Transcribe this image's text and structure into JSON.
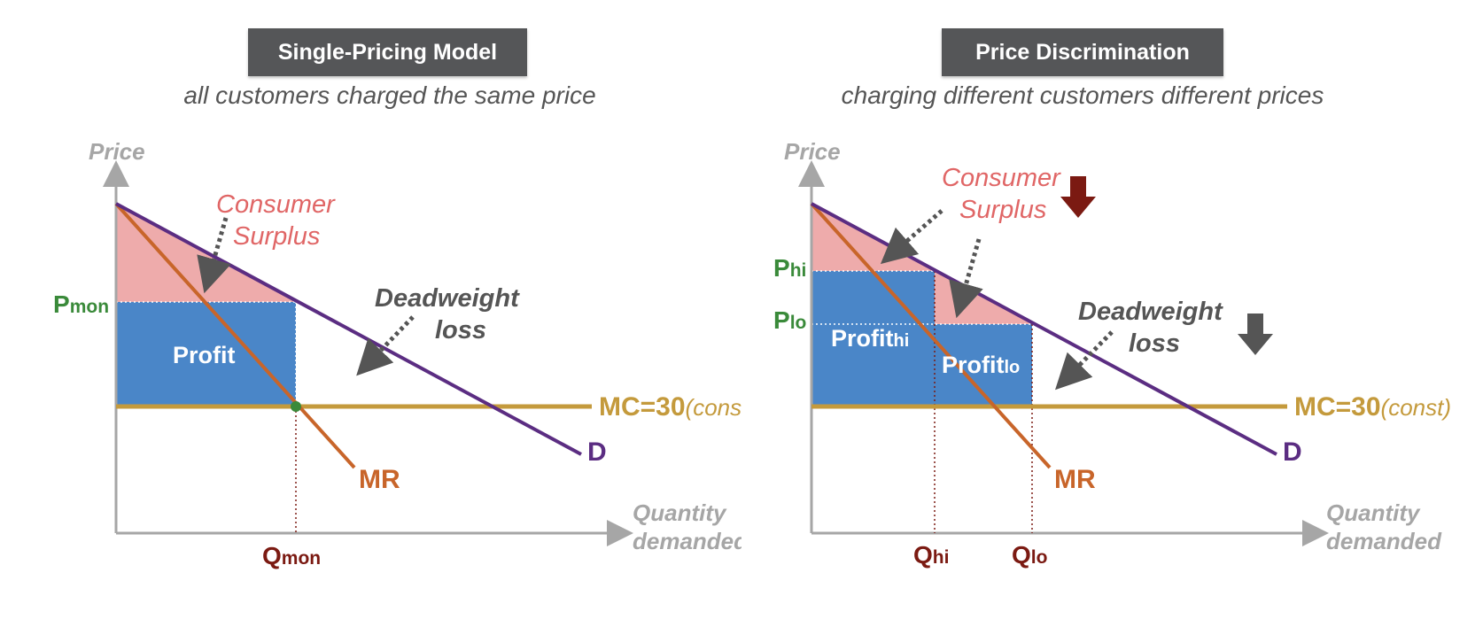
{
  "left": {
    "title": "Single-Pricing Model",
    "subtitle": "all customers charged the same price",
    "y_axis": "Price",
    "x_axis_line1": "Quantity",
    "x_axis_line2": "demanded",
    "cs_line1": "Consumer",
    "cs_line2": "Surplus",
    "dwl_line1": "Deadweight",
    "dwl_line2": "loss",
    "profit": "Profit",
    "mc": "MC=30",
    "mc_const": "(const)",
    "d": "D",
    "mr": "MR",
    "p_mon_main": "P",
    "p_mon_sub": "mon",
    "q_mon_main": "Q",
    "q_mon_sub": "mon"
  },
  "right": {
    "title": "Price Discrimination",
    "subtitle": "charging different customers different prices",
    "y_axis": "Price",
    "x_axis_line1": "Quantity",
    "x_axis_line2": "demanded",
    "cs_line1": "Consumer",
    "cs_line2": "Surplus",
    "dwl_line1": "Deadweight",
    "dwl_line2": "loss",
    "profit_hi_main": "Profit",
    "profit_hi_sub": "hi",
    "profit_lo_main": "Profit",
    "profit_lo_sub": "lo",
    "mc": "MC=30",
    "mc_const": "(const)",
    "d": "D",
    "mr": "MR",
    "p_hi_main": "P",
    "p_hi_sub": "hi",
    "p_lo_main": "P",
    "p_lo_sub": "lo",
    "q_hi_main": "Q",
    "q_hi_sub": "hi",
    "q_lo_main": "Q",
    "q_lo_sub": "lo"
  },
  "colors": {
    "demand": "#5b2d82",
    "mr": "#c8652a",
    "mc": "#c49a3c",
    "consumer_surplus": "#e06666",
    "profit": "#4a86c8",
    "axis": "#a6a6a6",
    "price_label": "#3a8a3a",
    "quantity_label": "#7b1a12",
    "cs_down_arrow": "#7b1a12",
    "dwl_down_arrow": "#555555"
  },
  "icons": [
    "cs-down-arrow-icon",
    "dwl-down-arrow-icon"
  ]
}
